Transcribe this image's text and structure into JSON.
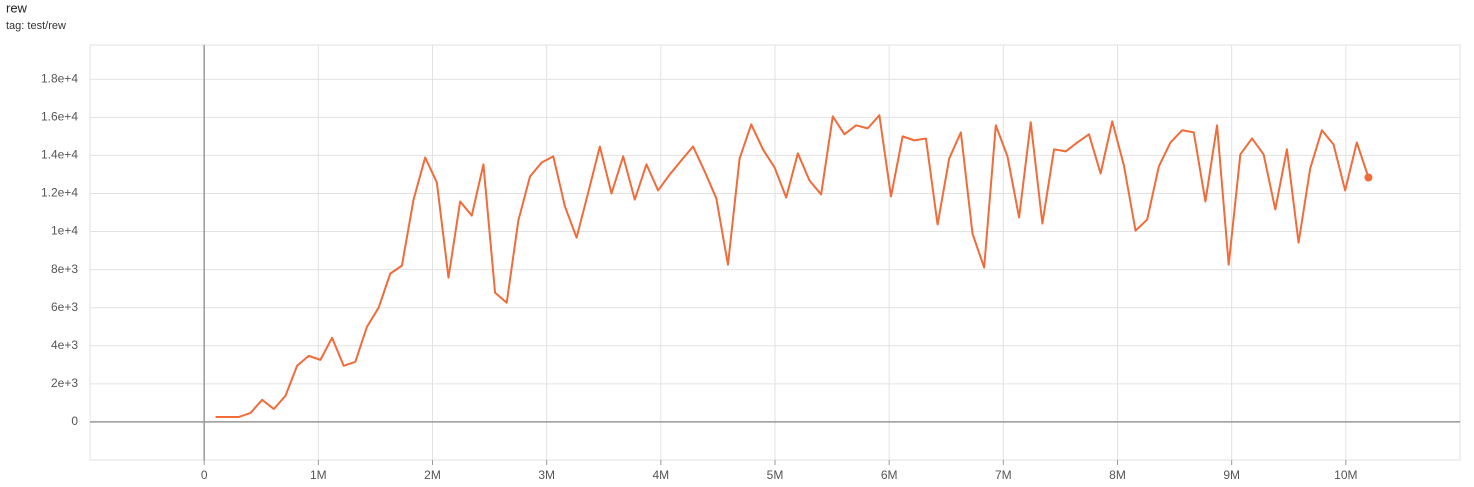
{
  "chart_data": {
    "type": "line",
    "title": "rew",
    "subtitle": "tag: test/rew",
    "x": [
      100000,
      202000,
      304000,
      406000,
      508000,
      610000,
      712000,
      814000,
      916000,
      1018000,
      1120000,
      1222000,
      1324000,
      1426000,
      1528000,
      1630000,
      1732000,
      1834000,
      1936000,
      2038000,
      2140000,
      2242000,
      2344000,
      2446000,
      2548000,
      2650000,
      2752000,
      2854000,
      2956000,
      3058000,
      3160000,
      3262000,
      3364000,
      3466000,
      3568000,
      3670000,
      3772000,
      3874000,
      3976000,
      4078000,
      4180000,
      4282000,
      4384000,
      4486000,
      4588000,
      4690000,
      4792000,
      4894000,
      4996000,
      5098000,
      5200000,
      5302000,
      5404000,
      5506000,
      5608000,
      5710000,
      5812000,
      5914000,
      6016000,
      6118000,
      6220000,
      6322000,
      6424000,
      6526000,
      6628000,
      6730000,
      6832000,
      6934000,
      7036000,
      7138000,
      7240000,
      7342000,
      7444000,
      7546000,
      7648000,
      7750000,
      7852000,
      7954000,
      8056000,
      8158000,
      8260000,
      8362000,
      8464000,
      8566000,
      8668000,
      8770000,
      8872000,
      8974000,
      9076000,
      9178000,
      9280000,
      9382000,
      9484000,
      9586000,
      9688000,
      9790000,
      9892000,
      9994000,
      10096000,
      10198000
    ],
    "series": [
      {
        "name": "test/rew",
        "color": "#f26b3a",
        "values": [
          260,
          260,
          260,
          470,
          1160,
          680,
          1370,
          2950,
          3470,
          3260,
          4420,
          2950,
          3160,
          5000,
          6000,
          7790,
          8210,
          11680,
          13890,
          12580,
          7580,
          11580,
          10840,
          13530,
          6790,
          6260,
          10580,
          12890,
          13630,
          13950,
          11320,
          9680,
          12050,
          14470,
          12000,
          13950,
          11680,
          13530,
          12160,
          13000,
          13740,
          14470,
          13160,
          11740,
          8260,
          13840,
          15630,
          14320,
          13370,
          11790,
          14110,
          12680,
          11950,
          16050,
          15110,
          15580,
          15420,
          16110,
          11840,
          15000,
          14790,
          14890,
          10370,
          13840,
          15210,
          9890,
          8110,
          15580,
          13950,
          10740,
          15740,
          10420,
          14320,
          14210,
          14680,
          15110,
          13050,
          15790,
          13470,
          10050,
          10630,
          13420,
          14680,
          15320,
          15210,
          11580,
          15580,
          8260,
          14050,
          14890,
          14050,
          11160,
          14320,
          9420,
          13320,
          15320,
          14580,
          12160,
          14680,
          12840
        ]
      }
    ],
    "xlim": [
      -1000000,
      11000000
    ],
    "xticks": [
      0,
      {
        "value": 1000000,
        "label": "1M"
      },
      {
        "value": 2000000,
        "label": "2M"
      },
      {
        "value": 3000000,
        "label": "3M"
      },
      {
        "value": 4000000,
        "label": "4M"
      },
      {
        "value": 5000000,
        "label": "5M"
      },
      {
        "value": 6000000,
        "label": "6M"
      },
      {
        "value": 7000000,
        "label": "7M"
      },
      {
        "value": 8000000,
        "label": "8M"
      },
      {
        "value": 9000000,
        "label": "9M"
      },
      {
        "value": 10000000,
        "label": "10M"
      }
    ],
    "ylim": [
      -2000,
      19800
    ],
    "yticks": [
      0,
      {
        "value": 2000,
        "label": "2e+3"
      },
      {
        "value": 4000,
        "label": "4e+3"
      },
      {
        "value": 6000,
        "label": "6e+3"
      },
      {
        "value": 8000,
        "label": "8e+3"
      },
      {
        "value": 10000,
        "label": "1e+4"
      },
      {
        "value": 12000,
        "label": "1.2e+4"
      },
      {
        "value": 14000,
        "label": "1.4e+4"
      },
      {
        "value": 16000,
        "label": "1.6e+4"
      },
      {
        "value": 18000,
        "label": "1.8e+4"
      }
    ],
    "grid": true
  }
}
